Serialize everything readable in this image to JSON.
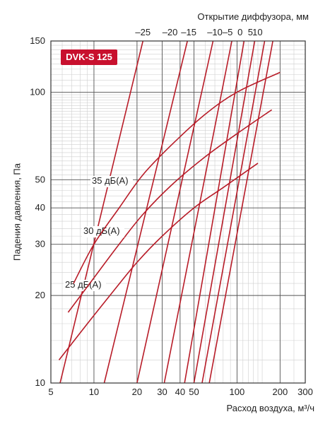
{
  "badge": {
    "text": "DVK-S 125",
    "color": "#c8102e"
  },
  "colors": {
    "curve": "#b81c28",
    "grid": "#cfcfcf",
    "axis": "#333333"
  },
  "chart_data": {
    "type": "line",
    "title": "",
    "xlabel": "Расход воздуха, м³/ч",
    "ylabel": "Падения давления, Па",
    "top_axis_label": "Открытие диффузора, мм",
    "x_scale": "log",
    "y_scale": "log",
    "xlim": [
      5,
      300
    ],
    "ylim": [
      10,
      150
    ],
    "grid": true,
    "x_ticks": [
      "5",
      "10",
      "20",
      "30",
      "40",
      "50",
      "100",
      "200",
      "300"
    ],
    "y_ticks": [
      "10",
      "20",
      "30",
      "40",
      "50",
      "100",
      "150"
    ],
    "top_ticks": [
      {
        "label": "–25",
        "flow": 22
      },
      {
        "label": "–20",
        "flow": 34
      },
      {
        "label": "–15",
        "flow": 46
      },
      {
        "label": "–10",
        "flow": 70
      },
      {
        "label": "–5",
        "flow": 86
      },
      {
        "label": "0",
        "flow": 105
      },
      {
        "label": "5",
        "flow": 124
      },
      {
        "label": "10",
        "flow": 139
      }
    ],
    "series": [
      {
        "points": [
          [
            5.8,
            10
          ],
          [
            22,
            150
          ]
        ]
      },
      {
        "points": [
          [
            11.8,
            10
          ],
          [
            45,
            150
          ]
        ]
      },
      {
        "points": [
          [
            20,
            10
          ],
          [
            68,
            150
          ]
        ]
      },
      {
        "points": [
          [
            31,
            10
          ],
          [
            92,
            150
          ]
        ]
      },
      {
        "points": [
          [
            43,
            10
          ],
          [
            112,
            150
          ]
        ]
      },
      {
        "points": [
          [
            50,
            10
          ],
          [
            133,
            150
          ]
        ]
      },
      {
        "points": [
          [
            57,
            10
          ],
          [
            156,
            150
          ]
        ]
      },
      {
        "points": [
          [
            64,
            10
          ],
          [
            178,
            150
          ]
        ]
      }
    ],
    "noise_curves": [
      {
        "name": "25 дБ(A)",
        "points": [
          [
            5.7,
            12
          ],
          [
            9,
            16
          ],
          [
            14,
            21
          ],
          [
            20,
            26
          ],
          [
            30,
            32
          ],
          [
            50,
            40
          ],
          [
            80,
            47
          ],
          [
            140,
            57
          ]
        ]
      },
      {
        "name": "30 дБ(A)",
        "points": [
          [
            6.6,
            17.5
          ],
          [
            10,
            23
          ],
          [
            15,
            30
          ],
          [
            22,
            38
          ],
          [
            35,
            48
          ],
          [
            60,
            60
          ],
          [
            100,
            72
          ],
          [
            175,
            87
          ]
        ]
      },
      {
        "name": "35 дБ(A)",
        "points": [
          [
            7.2,
            22
          ],
          [
            10,
            30
          ],
          [
            15,
            40
          ],
          [
            22,
            52
          ],
          [
            35,
            66
          ],
          [
            60,
            84
          ],
          [
            100,
            100
          ],
          [
            200,
            117
          ]
        ]
      }
    ]
  }
}
